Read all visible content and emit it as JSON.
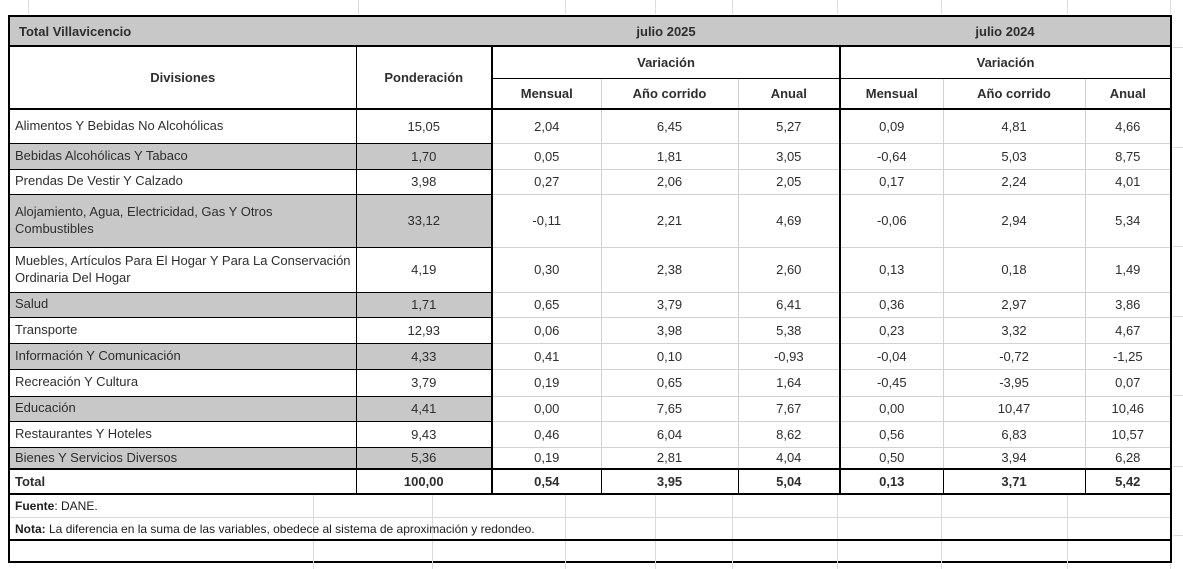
{
  "table": {
    "title": "Total Villavicencio",
    "periods": {
      "p2025": "julio 2025",
      "p2024": "julio 2024"
    },
    "headers": {
      "divisiones": "Divisiones",
      "ponderacion": "Ponderación",
      "variacion": "Variación",
      "mensual": "Mensual",
      "ano_corrido": "Año corrido",
      "anual": "Anual"
    },
    "rows": [
      {
        "division": "Alimentos Y Bebidas No Alcohólicas",
        "ponderacion": "15,05",
        "m2025": "2,04",
        "ac2025": "6,45",
        "a2025": "5,27",
        "m2024": "0,09",
        "ac2024": "4,81",
        "a2024": "4,66",
        "shaded": false
      },
      {
        "division": "Bebidas Alcohólicas Y Tabaco",
        "ponderacion": "1,70",
        "m2025": "0,05",
        "ac2025": "1,81",
        "a2025": "3,05",
        "m2024": "-0,64",
        "ac2024": "5,03",
        "a2024": "8,75",
        "shaded": true
      },
      {
        "division": "Prendas De Vestir Y Calzado",
        "ponderacion": "3,98",
        "m2025": "0,27",
        "ac2025": "2,06",
        "a2025": "2,05",
        "m2024": "0,17",
        "ac2024": "2,24",
        "a2024": "4,01",
        "shaded": false
      },
      {
        "division": "Alojamiento, Agua, Electricidad, Gas Y Otros Combustibles",
        "ponderacion": "33,12",
        "m2025": "-0,11",
        "ac2025": "2,21",
        "a2025": "4,69",
        "m2024": "-0,06",
        "ac2024": "2,94",
        "a2024": "5,34",
        "shaded": true
      },
      {
        "division": "Muebles, Artículos Para El Hogar Y Para La Conservación Ordinaria Del Hogar",
        "ponderacion": "4,19",
        "m2025": "0,30",
        "ac2025": "2,38",
        "a2025": "2,60",
        "m2024": "0,13",
        "ac2024": "0,18",
        "a2024": "1,49",
        "shaded": false
      },
      {
        "division": "Salud",
        "ponderacion": "1,71",
        "m2025": "0,65",
        "ac2025": "3,79",
        "a2025": "6,41",
        "m2024": "0,36",
        "ac2024": "2,97",
        "a2024": "3,86",
        "shaded": true
      },
      {
        "division": "Transporte",
        "ponderacion": "12,93",
        "m2025": "0,06",
        "ac2025": "3,98",
        "a2025": "5,38",
        "m2024": "0,23",
        "ac2024": "3,32",
        "a2024": "4,67",
        "shaded": false
      },
      {
        "division": "Información Y Comunicación",
        "ponderacion": "4,33",
        "m2025": "0,41",
        "ac2025": "0,10",
        "a2025": "-0,93",
        "m2024": "-0,04",
        "ac2024": "-0,72",
        "a2024": "-1,25",
        "shaded": true
      },
      {
        "division": "Recreación Y Cultura",
        "ponderacion": "3,79",
        "m2025": "0,19",
        "ac2025": "0,65",
        "a2025": "1,64",
        "m2024": "-0,45",
        "ac2024": "-3,95",
        "a2024": "0,07",
        "shaded": false
      },
      {
        "division": "Educación",
        "ponderacion": "4,41",
        "m2025": "0,00",
        "ac2025": "7,65",
        "a2025": "7,67",
        "m2024": "0,00",
        "ac2024": "10,47",
        "a2024": "10,46",
        "shaded": true
      },
      {
        "division": "Restaurantes Y Hoteles",
        "ponderacion": "9,43",
        "m2025": "0,46",
        "ac2025": "6,04",
        "a2025": "8,62",
        "m2024": "0,56",
        "ac2024": "6,83",
        "a2024": "10,57",
        "shaded": false
      },
      {
        "division": "Bienes Y Servicios Diversos",
        "ponderacion": "5,36",
        "m2025": "0,19",
        "ac2025": "2,81",
        "a2025": "4,04",
        "m2024": "0,50",
        "ac2024": "3,94",
        "a2024": "6,28",
        "shaded": true
      }
    ],
    "total": {
      "label": "Total",
      "ponderacion": "100,00",
      "m2025": "0,54",
      "ac2025": "3,95",
      "a2025": "5,04",
      "m2024": "0,13",
      "ac2024": "3,71",
      "a2024": "5,42"
    },
    "footer": {
      "fuente_label": "Fuente",
      "fuente_text": ": DANE.",
      "nota_label": "Nota:",
      "nota_text": " La diferencia en la suma de las variables, obedece al sistema de aproximación y redondeo."
    }
  },
  "colors": {
    "header_fill": "#c8c8c8",
    "row_shade": "#c8c8c8",
    "table_border": "#000000",
    "light_grid": "#d2d2d2",
    "sheet_grid": "#dcdcdc"
  }
}
